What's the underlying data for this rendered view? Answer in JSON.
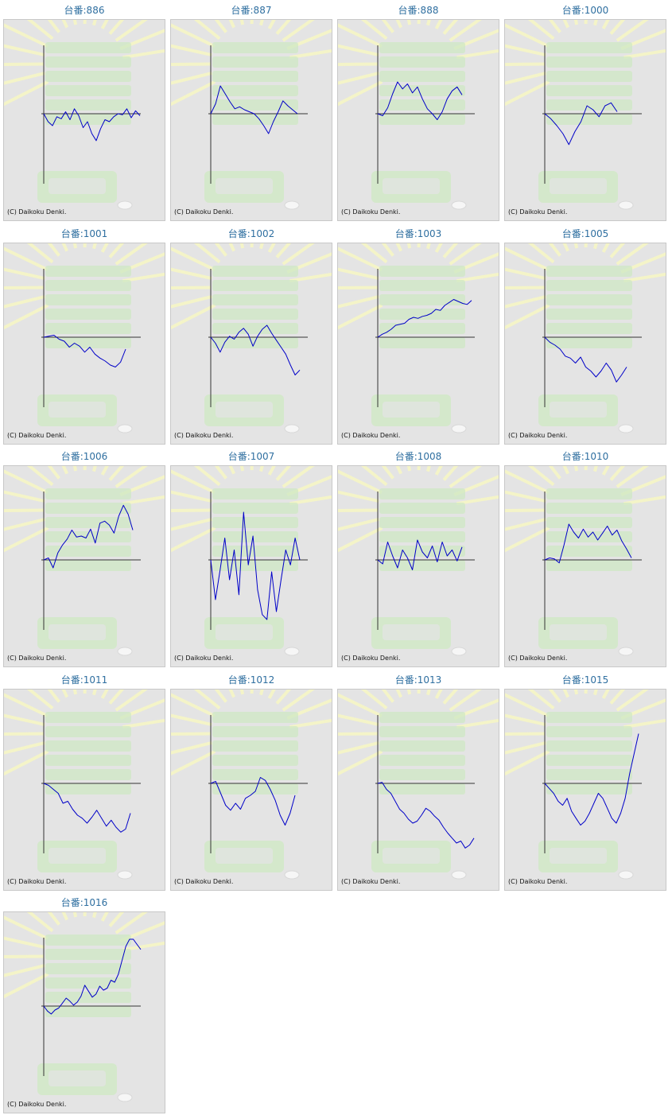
{
  "labels": {
    "machine_prefix": "台番:",
    "copyright": "(C) Daikoku Denki."
  },
  "colors": {
    "title": "#2f6fa0",
    "series_line": "#0000c8",
    "axis": "#333333",
    "background": "#e4e4e4",
    "watermark_green": "#cfe8c4",
    "watermark_rays": "#f4f4c8"
  },
  "chart_data": [
    {
      "type": "line",
      "title": "台番:886",
      "values": [
        0,
        -8,
        -12,
        -3,
        -5,
        2,
        -6,
        5,
        -2,
        -14,
        -8,
        -20,
        -27,
        -15,
        -6,
        -8,
        -3,
        0,
        -1,
        5,
        -4,
        3,
        -2
      ]
    },
    {
      "type": "line",
      "title": "台番:887",
      "values": [
        0,
        10,
        28,
        20,
        12,
        5,
        7,
        4,
        2,
        0,
        -5,
        -12,
        -20,
        -8,
        2,
        13,
        8,
        4,
        0
      ]
    },
    {
      "type": "line",
      "title": "台番:888",
      "values": [
        0,
        -2,
        6,
        20,
        32,
        25,
        30,
        21,
        27,
        15,
        5,
        0,
        -6,
        2,
        15,
        23,
        27,
        19
      ]
    },
    {
      "type": "line",
      "title": "台番:1000",
      "values": [
        0,
        -5,
        -12,
        -20,
        -31,
        -18,
        -8,
        8,
        4,
        -3,
        8,
        11,
        2
      ]
    },
    {
      "type": "line",
      "title": "台番:1001",
      "values": [
        0,
        1,
        2,
        -2,
        -4,
        -10,
        -6,
        -9,
        -15,
        -10,
        -17,
        -21,
        -24,
        -28,
        -30,
        -25,
        -12
      ]
    },
    {
      "type": "line",
      "title": "台番:1002",
      "values": [
        0,
        -6,
        -15,
        -5,
        1,
        -2,
        5,
        9,
        3,
        -9,
        1,
        8,
        12,
        4,
        -3,
        -10,
        -17,
        -28,
        -38,
        -33
      ]
    },
    {
      "type": "line",
      "title": "台番:1003",
      "values": [
        0,
        3,
        5,
        8,
        12,
        13,
        14,
        18,
        20,
        19,
        21,
        22,
        24,
        28,
        27,
        32,
        35,
        38,
        36,
        34,
        33,
        37
      ]
    },
    {
      "type": "line",
      "title": "台番:1005",
      "values": [
        0,
        -5,
        -8,
        -12,
        -19,
        -21,
        -26,
        -20,
        -30,
        -34,
        -40,
        -34,
        -26,
        -33,
        -45,
        -38,
        -30
      ]
    },
    {
      "type": "line",
      "title": "台番:1006",
      "values": [
        0,
        2,
        -8,
        7,
        15,
        21,
        30,
        23,
        24,
        22,
        31,
        17,
        37,
        39,
        35,
        27,
        44,
        55,
        46,
        30
      ]
    },
    {
      "type": "line",
      "title": "台番:1007",
      "values": [
        0,
        -40,
        -10,
        22,
        -20,
        10,
        -35,
        48,
        -5,
        24,
        -30,
        -55,
        -60,
        -12,
        -52,
        -20,
        10,
        -5,
        22,
        0
      ]
    },
    {
      "type": "line",
      "title": "台番:1008",
      "values": [
        0,
        -4,
        18,
        4,
        -8,
        10,
        2,
        -10,
        20,
        8,
        2,
        14,
        -2,
        18,
        4,
        10,
        -1,
        13
      ]
    },
    {
      "type": "line",
      "title": "台番:1010",
      "values": [
        0,
        2,
        1,
        -3,
        15,
        36,
        28,
        22,
        31,
        23,
        28,
        20,
        27,
        34,
        25,
        30,
        19,
        11,
        2
      ]
    },
    {
      "type": "line",
      "title": "台番:1011",
      "values": [
        0,
        -2,
        -6,
        -10,
        -20,
        -18,
        -26,
        -32,
        -35,
        -40,
        -34,
        -27,
        -35,
        -43,
        -37,
        -44,
        -49,
        -46,
        -30
      ]
    },
    {
      "type": "line",
      "title": "台番:1012",
      "values": [
        0,
        2,
        -10,
        -22,
        -27,
        -20,
        -26,
        -15,
        -12,
        -8,
        6,
        3,
        -6,
        -17,
        -32,
        -42,
        -30,
        -12
      ]
    },
    {
      "type": "line",
      "title": "台番:1013",
      "values": [
        0,
        1,
        -6,
        -10,
        -18,
        -26,
        -30,
        -36,
        -40,
        -38,
        -32,
        -25,
        -28,
        -33,
        -37,
        -44,
        -50,
        -55,
        -60,
        -58,
        -65,
        -62,
        -55
      ]
    },
    {
      "type": "line",
      "title": "台番:1015",
      "values": [
        0,
        -5,
        -10,
        -18,
        -22,
        -15,
        -28,
        -35,
        -42,
        -38,
        -30,
        -20,
        -10,
        -15,
        -25,
        -35,
        -40,
        -30,
        -15,
        10,
        30,
        50
      ]
    },
    {
      "type": "line",
      "title": "台番:1016",
      "values": [
        0,
        -5,
        -8,
        -4,
        -2,
        3,
        8,
        5,
        1,
        4,
        10,
        21,
        15,
        9,
        12,
        20,
        16,
        18,
        26,
        24,
        32,
        46,
        60,
        73,
        70,
        62,
        57
      ]
    }
  ]
}
